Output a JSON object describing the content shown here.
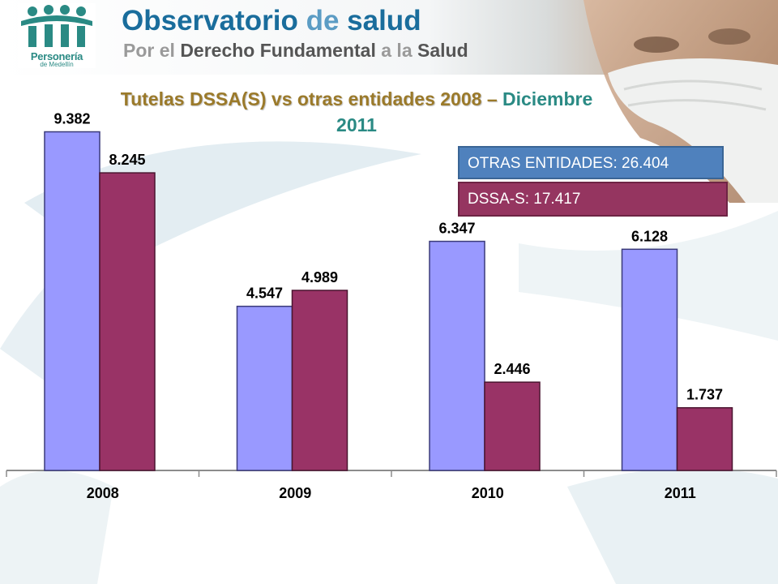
{
  "header": {
    "logo_name": "Personería",
    "logo_place": "de Medellín",
    "title_part1": "Observatorio",
    "title_part2": " de ",
    "title_part3": "salud",
    "subtitle_part1": "Por el ",
    "subtitle_part2": "Derecho Fundamental",
    "subtitle_part3": " a la ",
    "subtitle_part4": "Salud"
  },
  "slide": {
    "title_part1": "Tutelas DSSA(S) vs otras entidades 2008 –",
    "title_part2": " Diciembre",
    "title_line2": "2011"
  },
  "legend": {
    "otras": "OTRAS ENTIDADES: 26.404",
    "dssa": "DSSA-S: 17.417"
  },
  "colors": {
    "otras": "#9999ff",
    "dssa": "#993366",
    "teal": "#2a8a84",
    "brand_blue": "#1a6d9c"
  },
  "chart_data": {
    "type": "bar",
    "categories": [
      "2008",
      "2009",
      "2010",
      "2011"
    ],
    "series": [
      {
        "values": [
          9382,
          4547,
          6347,
          6128
        ],
        "labels": [
          "9.382",
          "4.547",
          "6.347",
          "6.128"
        ]
      },
      {
        "values": [
          8245,
          4989,
          2446,
          1737
        ],
        "labels": [
          "8.245",
          "4.989",
          "2.446",
          "1.737"
        ]
      }
    ],
    "ylim": [
      0,
      10000
    ],
    "grid": false
  }
}
